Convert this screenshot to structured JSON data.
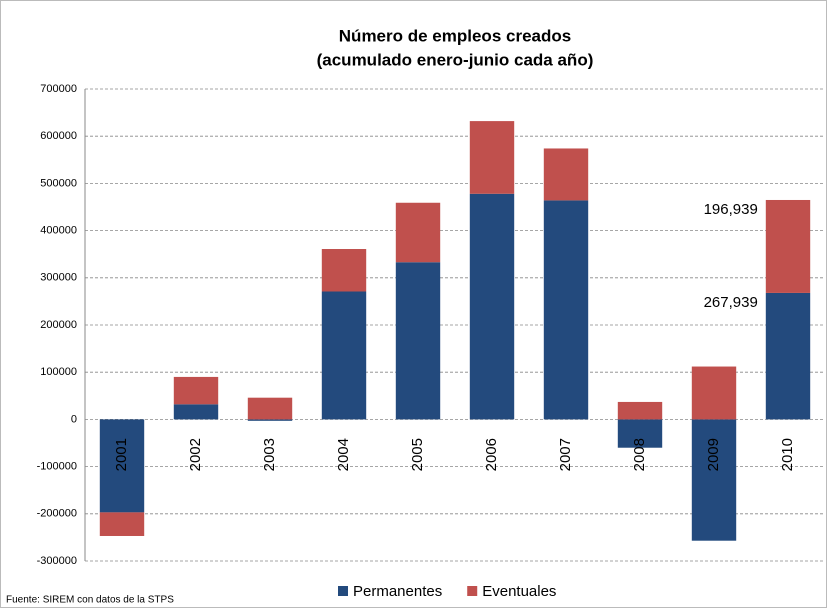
{
  "chart_data": {
    "type": "bar",
    "stacked": true,
    "title": "Número de empleos creados",
    "subtitle": "(acumulado enero-junio cada año)",
    "source": "Fuente: SIREM con datos de la STPS",
    "categories": [
      "2001",
      "2002",
      "2003",
      "2004",
      "2005",
      "2006",
      "2007",
      "2008",
      "2009",
      "2010"
    ],
    "series": [
      {
        "name": "Permanentes",
        "color": "#234a7d",
        "values": [
          -197000,
          32000,
          -3000,
          271000,
          333000,
          478000,
          464000,
          -60000,
          -257000,
          267939
        ],
        "value_labels": [
          null,
          null,
          null,
          null,
          null,
          null,
          null,
          null,
          null,
          "267,939"
        ]
      },
      {
        "name": "Eventuales",
        "color": "#c0504d",
        "values": [
          -50000,
          58000,
          46000,
          90000,
          126000,
          154000,
          110000,
          37000,
          112000,
          196939
        ],
        "value_labels": [
          null,
          null,
          null,
          null,
          null,
          null,
          null,
          null,
          null,
          "196,939"
        ]
      }
    ],
    "ylim": [
      -300000,
      700000
    ],
    "yticks": [
      -300000,
      -200000,
      -100000,
      0,
      100000,
      200000,
      300000,
      400000,
      500000,
      600000,
      700000
    ],
    "grid": true,
    "legend": "bottom"
  }
}
